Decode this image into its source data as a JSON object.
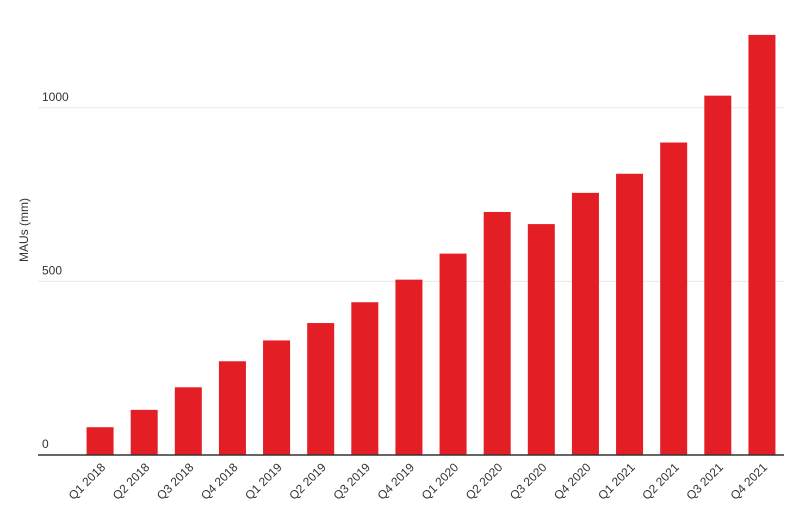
{
  "chart_data": {
    "type": "bar",
    "y_label": "MAUs (mm)",
    "categories": [
      "Q1 2018",
      "Q2 2018",
      "Q3 2018",
      "Q4 2018",
      "Q1 2019",
      "Q2 2019",
      "Q3 2019",
      "Q4 2019",
      "Q1 2020",
      "Q2 2020",
      "Q3 2020",
      "Q4 2020",
      "Q1 2021",
      "Q2 2021",
      "Q3 2021",
      "Q4 2021"
    ],
    "values": [
      80,
      130,
      195,
      270,
      330,
      380,
      440,
      505,
      580,
      700,
      665,
      755,
      810,
      900,
      1035,
      1210
    ],
    "color": "#e31e24",
    "ylim": [
      0,
      1250
    ],
    "yticks": [
      0,
      500,
      1000
    ],
    "grid": true
  }
}
